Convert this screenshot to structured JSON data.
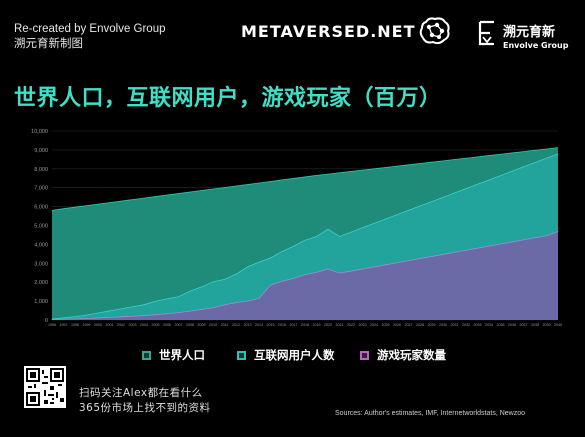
{
  "header": {
    "credit_line1": "Re-created by Envolve Group",
    "credit_line2": "溯元育新制图",
    "brand": "METAVERSED.NET",
    "envolve_cn": "溯元育新",
    "envolve_en": "Envolve Group",
    "brain_icon": "brain-icon",
    "envolve_icon": "envolve-logo-icon"
  },
  "colors": {
    "title": "#3ee0c8",
    "world": "#2fa88e",
    "internet": "#2cc4b4",
    "gamers": "#8a85c4"
  },
  "chart_data": {
    "type": "area",
    "title": "世界人口，互联网用户，游戏玩家（百万）",
    "xlabel": "",
    "ylabel": "",
    "ylim": [
      0,
      10000
    ],
    "yticks": [
      0,
      1000,
      2000,
      3000,
      4000,
      5000,
      6000,
      7000,
      8000,
      9000,
      10000
    ],
    "ytick_labels": [
      "0",
      "1,000",
      "2,000",
      "3,000",
      "4,000",
      "5,000",
      "6,000",
      "7,000",
      "8,000",
      "9,000",
      "10,000"
    ],
    "x": [
      1996,
      1997,
      1998,
      1999,
      2000,
      2001,
      2002,
      2003,
      2004,
      2005,
      2006,
      2007,
      2008,
      2009,
      2010,
      2011,
      2012,
      2013,
      2014,
      2015,
      2016,
      2017,
      2018,
      2019,
      2020,
      2021,
      2022,
      2023,
      2024,
      2025,
      2026,
      2027,
      2028,
      2029,
      2030,
      2031,
      2032,
      2033,
      2034,
      2035,
      2036,
      2037,
      2038,
      2039,
      2040
    ],
    "grid": true,
    "legend_position": "bottom",
    "series": [
      {
        "name": "世界人口",
        "values": [
          5800,
          5890,
          5970,
          6050,
          6130,
          6210,
          6290,
          6370,
          6450,
          6530,
          6610,
          6690,
          6770,
          6850,
          6930,
          7010,
          7090,
          7170,
          7250,
          7330,
          7410,
          7490,
          7570,
          7650,
          7720,
          7790,
          7860,
          7930,
          8000,
          8070,
          8140,
          8210,
          8280,
          8350,
          8420,
          8490,
          8560,
          8630,
          8700,
          8770,
          8840,
          8910,
          8980,
          9050,
          9120
        ]
      },
      {
        "name": "互联网用户人数",
        "values": [
          50,
          110,
          180,
          260,
          370,
          480,
          590,
          700,
          810,
          990,
          1120,
          1230,
          1520,
          1750,
          2020,
          2150,
          2420,
          2810,
          3060,
          3280,
          3620,
          3900,
          4220,
          4420,
          4800,
          4420,
          4650,
          4880,
          5110,
          5340,
          5570,
          5800,
          6030,
          6260,
          6490,
          6720,
          6950,
          7180,
          7410,
          7640,
          7870,
          8100,
          8330,
          8560,
          8790
        ]
      },
      {
        "name": "游戏玩家数量",
        "values": [
          20,
          40,
          60,
          80,
          110,
          140,
          170,
          200,
          240,
          280,
          330,
          390,
          470,
          560,
          650,
          800,
          920,
          1000,
          1150,
          1850,
          2050,
          2200,
          2400,
          2520,
          2700,
          2480,
          2590,
          2700,
          2810,
          2920,
          3030,
          3140,
          3250,
          3360,
          3470,
          3580,
          3690,
          3800,
          3910,
          4020,
          4130,
          4240,
          4350,
          4460,
          4680
        ]
      }
    ]
  },
  "legend": {
    "world": "世界人口",
    "internet": "互联网用户人数",
    "gamers": "游戏玩家数量"
  },
  "footer": {
    "qr_icon": "qr-code-icon",
    "qr_line1": "扫码关注Alex都在看什么",
    "qr_line2": "365份市场上找不到的资料",
    "sources": "Sources: Author's estimates, IMF, Internetworldstats, Newzoo"
  }
}
